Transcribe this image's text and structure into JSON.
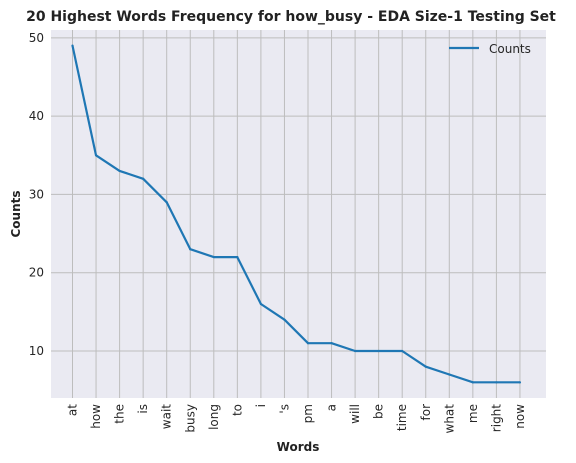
{
  "chart_data": {
    "type": "line",
    "title": "20 Highest Words Frequency for how_busy - EDA Size-1 Testing Set",
    "xlabel": "Words",
    "ylabel": "Counts",
    "categories": [
      "at",
      "how",
      "the",
      "is",
      "wait",
      "busy",
      "long",
      "to",
      "i",
      "'s",
      "pm",
      "a",
      "will",
      "be",
      "time",
      "for",
      "what",
      "me",
      "right",
      "now"
    ],
    "series": [
      {
        "name": "Counts",
        "values": [
          49,
          35,
          33,
          32,
          29,
          23,
          22,
          22,
          16,
          14,
          11,
          11,
          10,
          10,
          10,
          8,
          7,
          6,
          6,
          6
        ],
        "color": "#1f77b4"
      }
    ],
    "ylim": [
      4,
      51
    ],
    "yticks": [
      10,
      20,
      30,
      40,
      50
    ],
    "grid": true,
    "legend_position": "top-right",
    "background_color": "#eaeaf2",
    "grid_color": "#bdbdbd"
  }
}
